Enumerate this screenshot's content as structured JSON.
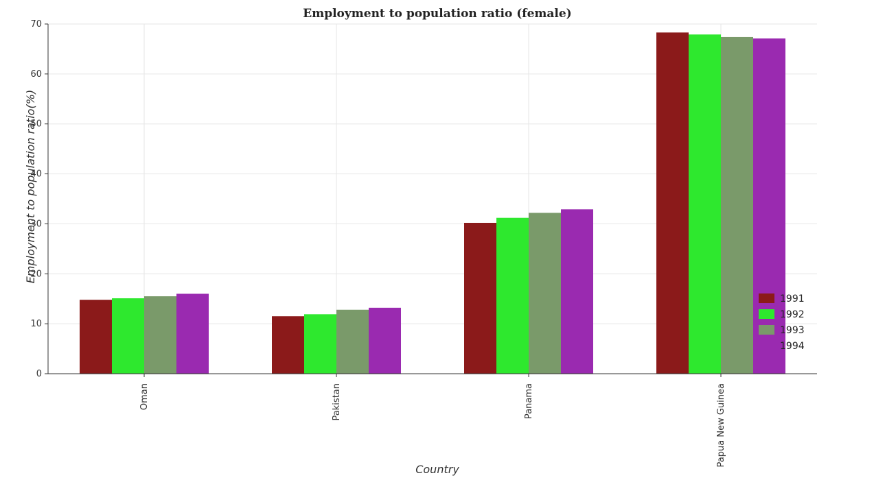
{
  "chart_data": {
    "type": "bar",
    "title": "Employment to population ratio (female)",
    "xlabel": "Country",
    "ylabel": "Employment to population ratio(%)",
    "categories": [
      "Oman",
      "Pakistan",
      "Panama",
      "Papua New Guinea"
    ],
    "series": [
      {
        "name": "1991",
        "color": "#8b1a1a",
        "values": [
          14.8,
          11.5,
          30.2,
          68.3
        ]
      },
      {
        "name": "1992",
        "color": "#2ee82e",
        "values": [
          15.1,
          11.9,
          31.2,
          67.9
        ]
      },
      {
        "name": "1993",
        "color": "#7a9a6a",
        "values": [
          15.5,
          12.8,
          32.2,
          67.4
        ]
      },
      {
        "name": "1994",
        "color": "#9a2ab0",
        "values": [
          16.0,
          13.2,
          32.9,
          67.1
        ]
      }
    ],
    "ylim": [
      0,
      70
    ],
    "yticks": [
      0,
      10,
      20,
      30,
      40,
      50,
      60,
      70
    ],
    "grid": true,
    "legend_position": "bottom-right"
  }
}
